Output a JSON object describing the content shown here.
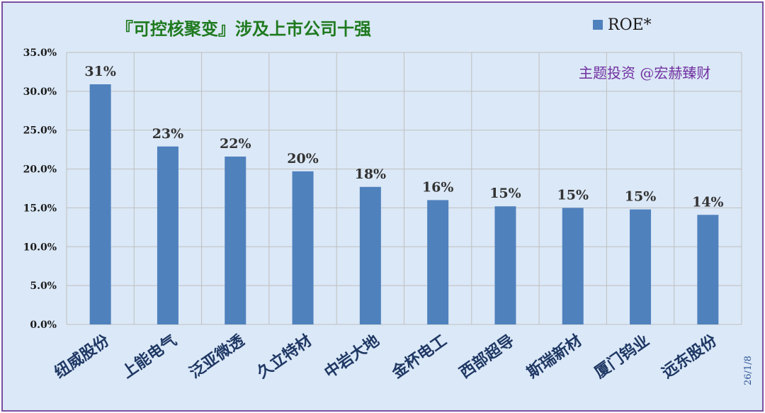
{
  "chart_data": {
    "type": "bar",
    "title": "『可控核聚变』涉及上市公司十强",
    "categories": [
      "纽威股份",
      "上能电气",
      "泛亚微透",
      "久立特材",
      "中岩大地",
      "金杯电工",
      "西部超导",
      "斯瑞新材",
      "厦门钨业",
      "远东股份"
    ],
    "series": [
      {
        "name": "ROE*",
        "values": [
          30.9,
          22.9,
          21.6,
          19.7,
          17.7,
          16.0,
          15.2,
          15.0,
          14.8,
          14.1
        ],
        "labels": [
          "31%",
          "23%",
          "22%",
          "20%",
          "18%",
          "16%",
          "15%",
          "15%",
          "15%",
          "14%"
        ]
      }
    ],
    "ylim": [
      0,
      35
    ],
    "yticks": [
      "0.0%",
      "5.0%",
      "10.0%",
      "15.0%",
      "20.0%",
      "25.0%",
      "30.0%",
      "35.0%"
    ],
    "xlabel": "",
    "ylabel": "",
    "grid": true,
    "legend_position": "top-right",
    "bar_color": "#4f81bd",
    "watermark": "主题投资 @宏赫臻财",
    "date": "26/1/8"
  }
}
